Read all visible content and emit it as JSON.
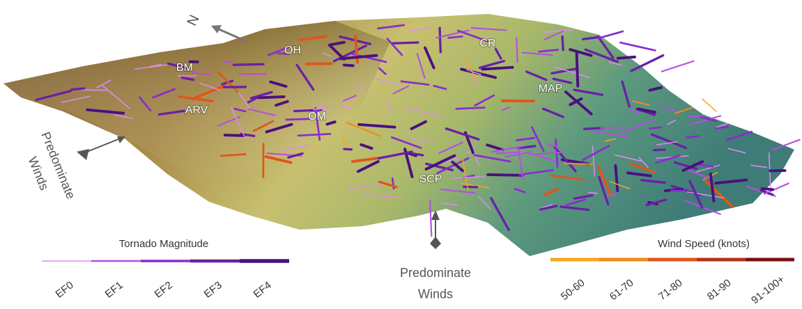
{
  "compass": {
    "label": "N"
  },
  "regions": [
    {
      "label": "BM"
    },
    {
      "label": "OH"
    },
    {
      "label": "CR"
    },
    {
      "label": "ARV"
    },
    {
      "label": "OM"
    },
    {
      "label": "MAP"
    },
    {
      "label": "SCP"
    }
  ],
  "wind_arrows": [
    {
      "label": "Predominate Winds"
    },
    {
      "label": "Predominate Winds"
    }
  ],
  "tornado_legend": {
    "title": "Tornado Magnitude",
    "items": [
      "EF0",
      "EF1",
      "EF2",
      "EF3",
      "EF4"
    ],
    "colors": [
      "#e08cf0",
      "#b44fe0",
      "#8a2bd0",
      "#6a1fa8",
      "#4a1080"
    ]
  },
  "wind_legend": {
    "title": "Wind Speed (knots)",
    "items": [
      "50-60",
      "61-70",
      "71-80",
      "81-90",
      "91-100+"
    ],
    "colors": [
      "#f5a623",
      "#f08a1c",
      "#e0561a",
      "#b3331a",
      "#7a1010"
    ]
  }
}
